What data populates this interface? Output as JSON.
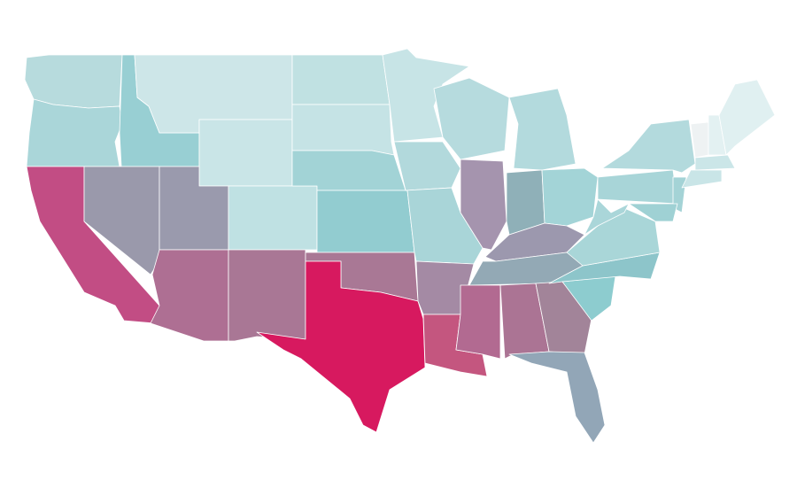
{
  "map": {
    "fills": [
      "#b7dbdd",
      "#aad6d9",
      "#c24d84",
      "#98cfd3",
      "#9a99ab",
      "#cde6e8",
      "#c9e5e7",
      "#9a9aad",
      "#ae6f93",
      "#bfe1e3",
      "#a97795",
      "#c0e1e2",
      "#c5e3e5",
      "#a2d3d6",
      "#92ccd0",
      "#a97895",
      "#d7195f",
      "#c7e4e6",
      "#b2d9dc",
      "#a9d5d8",
      "#a48aa4",
      "#c4567f",
      "#b6dbde",
      "#a594ae",
      "#b3dadd",
      "#8fb0b8",
      "#a3d4d7",
      "#9c98ae",
      "#93a9b5",
      "#b26a91",
      "#ab7494",
      "#a28499",
      "#92a6b7",
      "#8dcccf",
      "#8dc5ca",
      "#a9d6d8",
      "#aad6d9",
      "#a8d5d8",
      "#b3dadd",
      "#a4d3d6",
      "#9fd1d4",
      "#eef2f3",
      "#e3f1f2",
      "#e0f0f1",
      "#cbe6e8",
      "#c9e5e7"
    ]
  }
}
